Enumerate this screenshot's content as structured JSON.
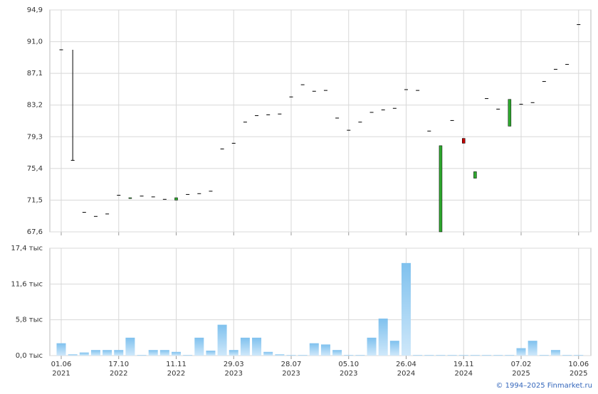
{
  "chart_data": [
    {
      "type": "candlestick",
      "open": [
        90.0,
        76.4,
        70.0,
        69.5,
        69.8,
        72.1,
        71.7,
        72.0,
        71.9,
        71.6,
        71.5,
        72.2,
        72.3,
        72.6,
        77.8,
        78.5,
        81.1,
        81.9,
        82.0,
        82.1,
        84.2,
        85.7,
        84.9,
        85.0,
        81.6,
        80.1,
        81.1,
        82.3,
        82.6,
        82.8,
        85.1,
        85.0,
        80.0,
        67.6,
        81.3,
        79.1,
        74.2,
        84.0,
        82.7,
        80.6,
        83.3,
        83.5,
        86.1,
        87.6,
        88.2,
        93.1
      ],
      "high": [
        90.0,
        90.0,
        70.0,
        69.5,
        69.8,
        72.1,
        71.8,
        72.0,
        71.9,
        71.6,
        71.8,
        72.2,
        72.3,
        72.6,
        77.8,
        78.5,
        81.1,
        81.9,
        82.0,
        82.1,
        84.2,
        85.7,
        84.9,
        85.0,
        81.6,
        80.1,
        81.1,
        82.3,
        82.6,
        82.8,
        85.1,
        85.0,
        80.0,
        78.2,
        81.3,
        79.1,
        75.0,
        84.0,
        82.7,
        83.9,
        83.3,
        83.5,
        86.1,
        87.6,
        88.2,
        93.1
      ],
      "low": [
        90.0,
        76.4,
        70.0,
        69.5,
        69.8,
        72.1,
        71.7,
        72.0,
        71.9,
        71.6,
        71.5,
        72.2,
        72.3,
        72.6,
        77.8,
        78.5,
        81.1,
        81.9,
        82.0,
        82.1,
        84.2,
        85.7,
        84.9,
        85.0,
        81.6,
        80.1,
        81.1,
        82.3,
        82.6,
        82.8,
        85.1,
        85.0,
        80.0,
        67.6,
        81.3,
        78.5,
        74.2,
        84.0,
        82.7,
        80.6,
        83.3,
        83.5,
        86.1,
        87.6,
        88.2,
        93.1
      ],
      "close": [
        90.0,
        76.4,
        70.0,
        69.5,
        69.8,
        72.1,
        71.8,
        72.0,
        71.9,
        71.6,
        71.8,
        72.2,
        72.3,
        72.6,
        77.8,
        78.5,
        81.1,
        81.9,
        82.0,
        82.1,
        84.2,
        85.7,
        84.9,
        85.0,
        81.6,
        80.1,
        81.1,
        82.3,
        82.6,
        82.8,
        85.1,
        85.0,
        80.0,
        78.2,
        81.3,
        78.5,
        75.0,
        84.0,
        82.7,
        83.9,
        83.3,
        83.5,
        86.1,
        87.6,
        88.2,
        93.1
      ],
      "up_color": "#2ea82e",
      "down_color": "#c00000",
      "flat_color": "#000000",
      "ylim": [
        67.6,
        94.9
      ],
      "yticks": [
        {
          "value": 67.6,
          "label": "67,6"
        },
        {
          "value": 71.5,
          "label": "71,5"
        },
        {
          "value": 75.4,
          "label": "75,4"
        },
        {
          "value": 79.3,
          "label": "79,3"
        },
        {
          "value": 83.2,
          "label": "83,2"
        },
        {
          "value": 87.1,
          "label": "87,1"
        },
        {
          "value": 91.0,
          "label": "91,0"
        },
        {
          "value": 94.9,
          "label": "94,9"
        }
      ],
      "grid": true
    },
    {
      "type": "bar",
      "categories": [
        "01.06",
        null,
        null,
        null,
        null,
        "17.10",
        null,
        null,
        null,
        null,
        "11.11",
        null,
        null,
        null,
        null,
        "29.03",
        null,
        null,
        null,
        null,
        "28.07",
        null,
        null,
        null,
        null,
        "05.10",
        null,
        null,
        null,
        null,
        "26.04",
        null,
        null,
        null,
        null,
        "19.11",
        null,
        null,
        null,
        null,
        "07.02",
        null,
        null,
        null,
        null,
        "10.06"
      ],
      "category_years": [
        "2021",
        null,
        null,
        null,
        null,
        "2022",
        null,
        null,
        null,
        null,
        "2022",
        null,
        null,
        null,
        null,
        "2023",
        null,
        null,
        null,
        null,
        "2023",
        null,
        null,
        null,
        null,
        "2023",
        null,
        null,
        null,
        null,
        "2024",
        null,
        null,
        null,
        null,
        "2024",
        null,
        null,
        null,
        null,
        "2025",
        null,
        null,
        null,
        null,
        "2025"
      ],
      "values": [
        2.0,
        0.2,
        0.5,
        0.9,
        0.9,
        0.9,
        2.9,
        0.1,
        0.9,
        0.9,
        0.6,
        0.1,
        2.9,
        0.8,
        5.0,
        0.9,
        2.9,
        2.9,
        0.6,
        0.2,
        0.1,
        0.1,
        2.0,
        1.8,
        0.9,
        0.1,
        0.1,
        2.9,
        6.0,
        2.4,
        15.0,
        0.1,
        0.1,
        0.1,
        0.1,
        0.1,
        0.1,
        0.1,
        0.1,
        0.1,
        1.2,
        2.4,
        0.1,
        0.9,
        0.1,
        0.1
      ],
      "color": "#7fc1ee",
      "ylim": [
        0,
        17.4
      ],
      "yticks": [
        {
          "value": 0,
          "label": "0,0 тыс"
        },
        {
          "value": 5.8,
          "label": "5,8 тыс"
        },
        {
          "value": 11.6,
          "label": "11,6 тыс"
        },
        {
          "value": 17.4,
          "label": "17,4 тыс"
        }
      ],
      "grid": true
    }
  ],
  "footer": "© 1994–2025 Finmarket.ru"
}
